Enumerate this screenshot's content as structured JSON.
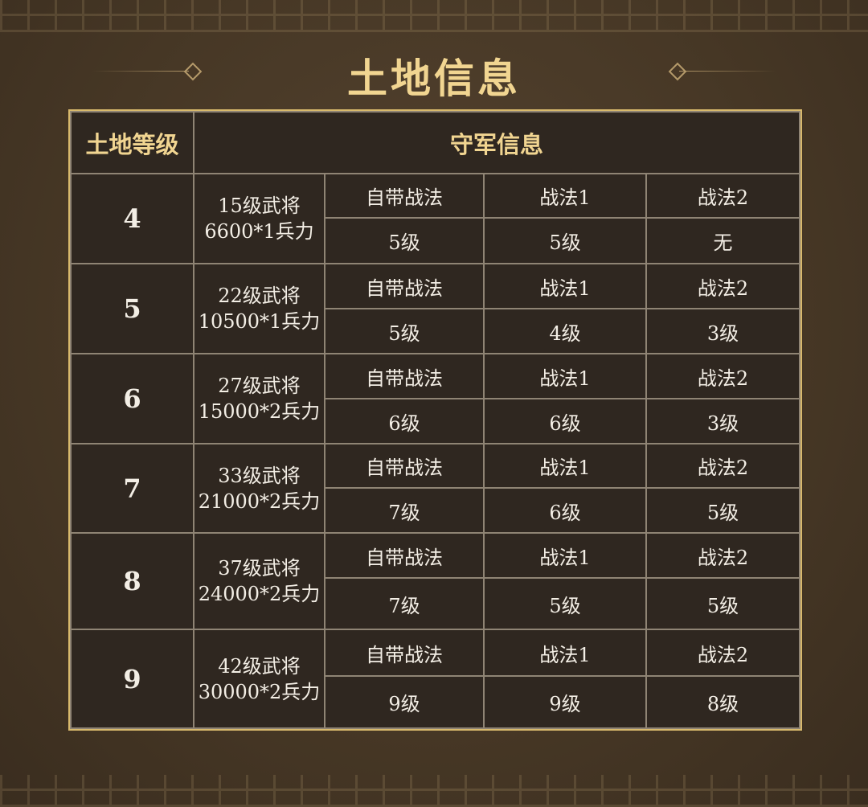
{
  "title": "土地信息",
  "headers": {
    "level": "土地等级",
    "defense": "守军信息"
  },
  "rows": [
    {
      "level": "4",
      "general": "15级武将",
      "troops": "6600*1兵力",
      "labels": [
        "自带战法",
        "战法1",
        "战法2"
      ],
      "values": [
        "5级",
        "5级",
        "无"
      ]
    },
    {
      "level": "5",
      "general": "22级武将",
      "troops": "10500*1兵力",
      "labels": [
        "自带战法",
        "战法1",
        "战法2"
      ],
      "values": [
        "5级",
        "4级",
        "3级"
      ]
    },
    {
      "level": "6",
      "general": "27级武将",
      "troops": "15000*2兵力",
      "labels": [
        "自带战法",
        "战法1",
        "战法2"
      ],
      "values": [
        "6级",
        "6级",
        "3级"
      ]
    },
    {
      "level": "7",
      "general": "33级武将",
      "troops": "21000*2兵力",
      "labels": [
        "自带战法",
        "战法1",
        "战法2"
      ],
      "values": [
        "7级",
        "6级",
        "5级"
      ]
    },
    {
      "level": "8",
      "general": "37级武将",
      "troops": "24000*2兵力",
      "labels": [
        "自带战法",
        "战法1",
        "战法2"
      ],
      "values": [
        "7级",
        "5级",
        "5级"
      ]
    },
    {
      "level": "9",
      "general": "42级武将",
      "troops": "30000*2兵力",
      "labels": [
        "自带战法",
        "战法1",
        "战法2"
      ],
      "values": [
        "9级",
        "9级",
        "8级"
      ]
    }
  ],
  "colors": {
    "accent": "#f1d591",
    "border": "#d8b96c",
    "cell": "#2f2720"
  }
}
